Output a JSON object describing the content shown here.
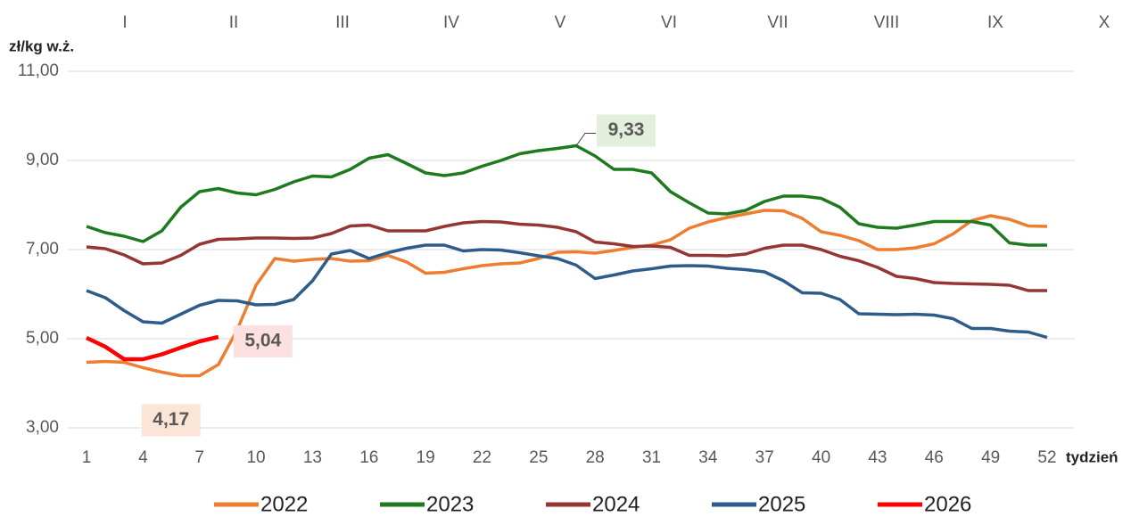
{
  "chart_data": {
    "type": "line",
    "y_label": "zł/kg w.ż.",
    "x_label": "tydzień",
    "month_labels": [
      "I",
      "II",
      "III",
      "IV",
      "V",
      "VI",
      "VII",
      "VIII",
      "IX",
      "X"
    ],
    "x": [
      1,
      2,
      3,
      4,
      5,
      6,
      7,
      8,
      9,
      10,
      11,
      12,
      13,
      14,
      15,
      16,
      17,
      18,
      19,
      20,
      21,
      22,
      23,
      24,
      25,
      26,
      27,
      28,
      29,
      30,
      31,
      32,
      33,
      34,
      35,
      36,
      37,
      38,
      39,
      40,
      41,
      42,
      43,
      44,
      45,
      46,
      47,
      48,
      49,
      50,
      51,
      52
    ],
    "xlim": [
      1,
      52
    ],
    "xticks": [
      1,
      4,
      7,
      10,
      13,
      16,
      19,
      22,
      25,
      28,
      31,
      34,
      37,
      40,
      43,
      46,
      49,
      52
    ],
    "ylim": [
      3,
      11
    ],
    "yticks": [
      {
        "value": 3,
        "label": "3,00"
      },
      {
        "value": 5,
        "label": "5,00"
      },
      {
        "value": 7,
        "label": "7,00"
      },
      {
        "value": 9,
        "label": "9,00"
      },
      {
        "value": 11,
        "label": "11,00"
      }
    ],
    "grid": true,
    "legend": "bottom",
    "series": [
      {
        "name": "2022",
        "color": "#ed7d31",
        "values": [
          4.47,
          4.49,
          4.47,
          4.35,
          4.25,
          4.17,
          4.17,
          4.42,
          5.2,
          6.2,
          6.8,
          6.74,
          6.78,
          6.8,
          6.74,
          6.75,
          6.87,
          6.72,
          6.47,
          6.49,
          6.57,
          6.64,
          6.68,
          6.7,
          6.8,
          6.94,
          6.95,
          6.92,
          6.98,
          7.05,
          7.1,
          7.22,
          7.48,
          7.62,
          7.72,
          7.8,
          7.88,
          7.87,
          7.7,
          7.4,
          7.32,
          7.2,
          7.0,
          7.0,
          7.04,
          7.13,
          7.35,
          7.65,
          7.76,
          7.68,
          7.53,
          7.52
        ],
        "value_labels": [
          null,
          null,
          null,
          null,
          null,
          null,
          "4,17",
          null,
          null,
          null,
          null,
          null,
          null,
          null,
          null,
          null,
          null,
          null,
          null,
          null,
          null,
          null,
          null,
          null,
          null,
          null,
          null,
          null,
          null,
          null,
          null,
          null,
          null,
          null,
          null,
          null,
          null,
          null,
          null,
          null,
          null,
          null,
          null,
          null,
          null,
          null,
          null,
          null,
          null,
          null,
          null,
          null
        ]
      },
      {
        "name": "2023",
        "color": "#1f7a1f",
        "values": [
          7.52,
          7.38,
          7.3,
          7.18,
          7.42,
          7.95,
          8.3,
          8.37,
          8.27,
          8.23,
          8.35,
          8.52,
          8.65,
          8.63,
          8.8,
          9.05,
          9.13,
          8.93,
          8.72,
          8.66,
          8.72,
          8.87,
          9.0,
          9.15,
          9.22,
          9.27,
          9.33,
          9.1,
          8.8,
          8.8,
          8.72,
          8.3,
          8.05,
          7.82,
          7.8,
          7.88,
          8.08,
          8.2,
          8.2,
          8.15,
          7.95,
          7.58,
          7.5,
          7.48,
          7.55,
          7.63,
          7.63,
          7.63,
          7.55,
          7.15,
          7.1,
          7.1
        ],
        "value_labels": [
          null,
          null,
          null,
          null,
          null,
          null,
          null,
          null,
          null,
          null,
          null,
          null,
          null,
          null,
          null,
          null,
          null,
          null,
          null,
          null,
          null,
          null,
          null,
          null,
          null,
          null,
          "9,33",
          null,
          null,
          null,
          null,
          null,
          null,
          null,
          null,
          null,
          null,
          null,
          null,
          null,
          null,
          null,
          null,
          null,
          null,
          null,
          null,
          null,
          null,
          null,
          null,
          null
        ]
      },
      {
        "name": "2024",
        "color": "#943634",
        "values": [
          7.06,
          7.02,
          6.88,
          6.68,
          6.7,
          6.87,
          7.12,
          7.23,
          7.24,
          7.26,
          7.26,
          7.25,
          7.26,
          7.36,
          7.53,
          7.55,
          7.42,
          7.42,
          7.42,
          7.52,
          7.6,
          7.63,
          7.62,
          7.57,
          7.55,
          7.5,
          7.4,
          7.17,
          7.13,
          7.07,
          7.08,
          7.05,
          6.87,
          6.87,
          6.86,
          6.9,
          7.03,
          7.1,
          7.1,
          7.0,
          6.85,
          6.75,
          6.6,
          6.4,
          6.35,
          6.26,
          6.24,
          6.23,
          6.22,
          6.2,
          6.08,
          6.08
        ]
      },
      {
        "name": "2025",
        "color": "#2e5c8a",
        "values": [
          6.08,
          5.92,
          5.63,
          5.38,
          5.35,
          5.55,
          5.75,
          5.86,
          5.85,
          5.76,
          5.77,
          5.88,
          6.3,
          6.9,
          6.98,
          6.8,
          6.93,
          7.03,
          7.1,
          7.1,
          6.97,
          7.0,
          6.99,
          6.93,
          6.86,
          6.8,
          6.65,
          6.35,
          6.43,
          6.52,
          6.57,
          6.63,
          6.64,
          6.63,
          6.58,
          6.55,
          6.5,
          6.3,
          6.03,
          6.02,
          5.88,
          5.56,
          5.55,
          5.54,
          5.55,
          5.53,
          5.45,
          5.23,
          5.23,
          5.17,
          5.15,
          5.03
        ]
      },
      {
        "name": "2026",
        "color": "#ff0000",
        "values": [
          5.02,
          4.82,
          4.54,
          4.54,
          4.65,
          4.8,
          4.94,
          5.04,
          null,
          null,
          null,
          null,
          null,
          null,
          null,
          null,
          null,
          null,
          null,
          null,
          null,
          null,
          null,
          null,
          null,
          null,
          null,
          null,
          null,
          null,
          null,
          null,
          null,
          null,
          null,
          null,
          null,
          null,
          null,
          null,
          null,
          null,
          null,
          null,
          null,
          null,
          null,
          null,
          null,
          null,
          null,
          null
        ],
        "value_labels": [
          null,
          null,
          null,
          null,
          null,
          null,
          null,
          "5,04",
          null,
          null,
          null,
          null,
          null,
          null,
          null,
          null,
          null,
          null,
          null,
          null,
          null,
          null,
          null,
          null,
          null,
          null,
          null,
          null,
          null,
          null,
          null,
          null,
          null,
          null,
          null,
          null,
          null,
          null,
          null,
          null,
          null,
          null,
          null,
          null,
          null,
          null,
          null,
          null,
          null,
          null,
          null,
          null
        ]
      }
    ]
  }
}
